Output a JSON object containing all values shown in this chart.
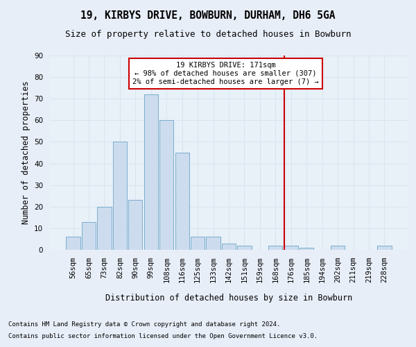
{
  "title": "19, KIRBYS DRIVE, BOWBURN, DURHAM, DH6 5GA",
  "subtitle": "Size of property relative to detached houses in Bowburn",
  "xlabel": "Distribution of detached houses by size in Bowburn",
  "ylabel": "Number of detached properties",
  "bar_labels": [
    "56sqm",
    "65sqm",
    "73sqm",
    "82sqm",
    "90sqm",
    "99sqm",
    "108sqm",
    "116sqm",
    "125sqm",
    "133sqm",
    "142sqm",
    "151sqm",
    "159sqm",
    "168sqm",
    "176sqm",
    "185sqm",
    "194sqm",
    "202sqm",
    "211sqm",
    "219sqm",
    "228sqm"
  ],
  "bar_heights": [
    6,
    13,
    20,
    50,
    23,
    72,
    60,
    45,
    6,
    6,
    3,
    2,
    0,
    2,
    2,
    1,
    0,
    2,
    0,
    0,
    2
  ],
  "bar_color": "#ccdcee",
  "bar_edge_color": "#7aadcc",
  "grid_color": "#d8e2ee",
  "vline_x": 13.55,
  "vline_color": "#cc0000",
  "annotation_line1": "19 KIRBYS DRIVE: 171sqm",
  "annotation_line2": "← 98% of detached houses are smaller (307)",
  "annotation_line3": "2% of semi-detached houses are larger (7) →",
  "annotation_box_facecolor": "#ffffff",
  "annotation_box_edgecolor": "#cc0000",
  "ylim": [
    0,
    90
  ],
  "yticks": [
    0,
    10,
    20,
    30,
    40,
    50,
    60,
    70,
    80,
    90
  ],
  "fig_bg": "#e8eef8",
  "plot_bg": "#e8f0f8",
  "title_fontsize": 10.5,
  "subtitle_fontsize": 9,
  "ylabel_fontsize": 8.5,
  "xlabel_fontsize": 8.5,
  "tick_fontsize": 7.5,
  "ann_fontsize": 7.5,
  "footnote_fontsize": 6.5,
  "footnote1": "Contains HM Land Registry data © Crown copyright and database right 2024.",
  "footnote2": "Contains public sector information licensed under the Open Government Licence v3.0."
}
